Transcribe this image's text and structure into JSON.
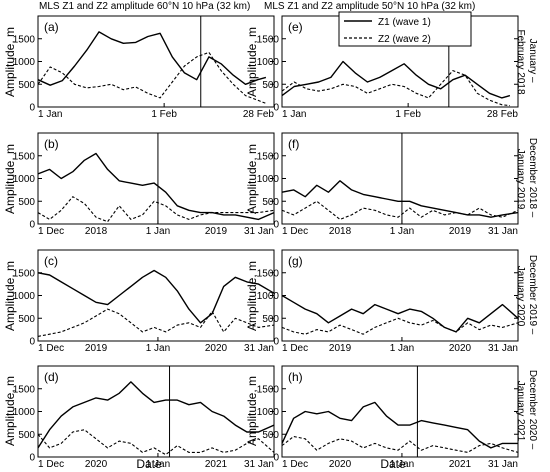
{
  "figure": {
    "left_title": "MLS  Z1 and Z2 amplitude 60°N 10 hPa (32 km)",
    "right_title": "MLS Z1 and Z2 amplitude 50°N  10 hPa (32 km)",
    "xlabel": "Date",
    "ylabel": "Amplitude, m",
    "legend": {
      "z1": "Z1 (wave 1)",
      "z2": "Z2 (wave 2)"
    }
  },
  "rows": [
    {
      "period_label": [
        "January –",
        "February 2018"
      ]
    },
    {
      "period_label": [
        "December 2018 –",
        "January 2019"
      ]
    },
    {
      "period_label": [
        "December 2019 –",
        "January 2020"
      ]
    },
    {
      "period_label": [
        "December 2020 –",
        "January 2021"
      ]
    }
  ],
  "chart_data": [
    {
      "panel": "(a)",
      "type": "line",
      "xlim": [
        0,
        58
      ],
      "ylim": [
        0,
        2000
      ],
      "yticks": [
        0,
        500,
        1000,
        1500
      ],
      "xtick_labels": [
        {
          "x": 0,
          "label": "1 Jan"
        },
        {
          "x": 31,
          "label": "1 Feb"
        },
        {
          "x": 58,
          "label": "28 Feb"
        }
      ],
      "year_labels": [],
      "vline_x": 40,
      "x": [
        0,
        3,
        6,
        9,
        12,
        15,
        18,
        21,
        24,
        27,
        30,
        33,
        36,
        39,
        42,
        45,
        48,
        51,
        54,
        56
      ],
      "series": [
        {
          "name": "Z1 (wave 1)",
          "style": "solid",
          "values": [
            600,
            480,
            580,
            900,
            1250,
            1650,
            1500,
            1400,
            1420,
            1550,
            1620,
            1100,
            750,
            600,
            1100,
            950,
            700,
            500,
            600,
            650
          ]
        },
        {
          "name": "Z2 (wave 2)",
          "style": "dashed",
          "values": [
            500,
            880,
            750,
            500,
            420,
            450,
            500,
            380,
            440,
            300,
            200,
            550,
            900,
            1100,
            1200,
            800,
            500,
            250,
            150,
            80
          ]
        }
      ]
    },
    {
      "panel": "(b)",
      "type": "line",
      "xlim": [
        0,
        61
      ],
      "ylim": [
        0,
        2000
      ],
      "yticks": [
        0,
        500,
        1000,
        1500
      ],
      "xtick_labels": [
        {
          "x": 0,
          "label": "1 Dec"
        },
        {
          "x": 31,
          "label": "1 Jan"
        },
        {
          "x": 61,
          "label": "31 Jan"
        }
      ],
      "year_labels": [
        {
          "x": 15,
          "label": "2018"
        },
        {
          "x": 46,
          "label": "2019"
        }
      ],
      "vline_x": 31,
      "x": [
        0,
        3,
        6,
        9,
        12,
        15,
        18,
        21,
        24,
        27,
        30,
        33,
        36,
        39,
        42,
        45,
        48,
        51,
        54,
        57,
        61
      ],
      "series": [
        {
          "name": "Z1 (wave 1)",
          "style": "solid",
          "values": [
            1100,
            1200,
            1000,
            1150,
            1400,
            1550,
            1200,
            950,
            900,
            850,
            900,
            700,
            400,
            300,
            250,
            250,
            200,
            200,
            150,
            100,
            250
          ]
        },
        {
          "name": "Z2 (wave 2)",
          "style": "dashed",
          "values": [
            250,
            100,
            300,
            600,
            450,
            150,
            50,
            400,
            100,
            200,
            500,
            400,
            200,
            100,
            200,
            250,
            250,
            250,
            250,
            250,
            300
          ]
        }
      ]
    },
    {
      "panel": "(c)",
      "type": "line",
      "xlim": [
        0,
        61
      ],
      "ylim": [
        0,
        2000
      ],
      "yticks": [
        0,
        500,
        1000,
        1500
      ],
      "xtick_labels": [
        {
          "x": 0,
          "label": "1 Dec"
        },
        {
          "x": 31,
          "label": "1 Jan"
        },
        {
          "x": 61,
          "label": "31 Jan"
        }
      ],
      "year_labels": [
        {
          "x": 15,
          "label": "2019"
        },
        {
          "x": 46,
          "label": "2020"
        }
      ],
      "vline_x": null,
      "x": [
        0,
        3,
        6,
        9,
        12,
        15,
        18,
        21,
        24,
        27,
        30,
        33,
        36,
        39,
        42,
        45,
        48,
        51,
        54,
        57,
        61
      ],
      "series": [
        {
          "name": "Z1 (wave 1)",
          "style": "solid",
          "values": [
            1500,
            1450,
            1300,
            1150,
            1000,
            850,
            800,
            1000,
            1200,
            1400,
            1550,
            1400,
            1100,
            700,
            400,
            600,
            1200,
            1400,
            1300,
            1250,
            1050
          ]
        },
        {
          "name": "Z2 (wave 2)",
          "style": "dashed",
          "values": [
            100,
            150,
            200,
            300,
            400,
            550,
            700,
            600,
            400,
            200,
            300,
            200,
            350,
            400,
            300,
            650,
            200,
            500,
            400,
            300,
            350
          ]
        }
      ]
    },
    {
      "panel": "(d)",
      "type": "line",
      "xlim": [
        0,
        61
      ],
      "ylim": [
        0,
        2000
      ],
      "yticks": [
        0,
        500,
        1000,
        1500
      ],
      "xtick_labels": [
        {
          "x": 0,
          "label": "1 Dec"
        },
        {
          "x": 31,
          "label": "1 Jan"
        },
        {
          "x": 61,
          "label": "31 Jan"
        }
      ],
      "year_labels": [
        {
          "x": 15,
          "label": "2020"
        },
        {
          "x": 46,
          "label": "2021"
        }
      ],
      "vline_x": 34,
      "x": [
        0,
        3,
        6,
        9,
        12,
        15,
        18,
        21,
        24,
        27,
        30,
        33,
        36,
        39,
        42,
        45,
        48,
        51,
        54,
        57,
        61
      ],
      "series": [
        {
          "name": "Z1 (wave 1)",
          "style": "solid",
          "values": [
            200,
            600,
            900,
            1100,
            1200,
            1300,
            1250,
            1400,
            1650,
            1400,
            1200,
            1250,
            1250,
            1150,
            1200,
            1000,
            900,
            700,
            550,
            550,
            700
          ]
        },
        {
          "name": "Z2 (wave 2)",
          "style": "dashed",
          "values": [
            500,
            200,
            300,
            550,
            600,
            400,
            200,
            350,
            300,
            100,
            200,
            50,
            250,
            100,
            100,
            200,
            100,
            150,
            300,
            400,
            100
          ]
        }
      ]
    },
    {
      "panel": "(e)",
      "type": "line",
      "xlim": [
        0,
        58
      ],
      "ylim": [
        0,
        2000
      ],
      "yticks": [
        0,
        500,
        1000,
        1500
      ],
      "xtick_labels": [
        {
          "x": 0,
          "label": "1 Jan"
        },
        {
          "x": 31,
          "label": "1 Feb"
        },
        {
          "x": 58,
          "label": "28 Feb"
        }
      ],
      "year_labels": [],
      "vline_x": 41,
      "x": [
        0,
        3,
        6,
        9,
        12,
        15,
        18,
        21,
        24,
        27,
        30,
        33,
        36,
        39,
        42,
        45,
        48,
        51,
        54,
        56
      ],
      "series": [
        {
          "name": "Z1 (wave 1)",
          "style": "solid",
          "values": [
            250,
            450,
            500,
            550,
            650,
            1000,
            750,
            550,
            650,
            800,
            950,
            700,
            500,
            400,
            600,
            700,
            500,
            300,
            200,
            250
          ]
        },
        {
          "name": "Z2 (wave 2)",
          "style": "dashed",
          "values": [
            350,
            550,
            400,
            350,
            400,
            500,
            450,
            300,
            400,
            500,
            450,
            300,
            200,
            500,
            800,
            700,
            300,
            150,
            50,
            30
          ]
        }
      ]
    },
    {
      "panel": "(f)",
      "type": "line",
      "xlim": [
        0,
        61
      ],
      "ylim": [
        0,
        2000
      ],
      "yticks": [
        0,
        500,
        1000,
        1500
      ],
      "xtick_labels": [
        {
          "x": 0,
          "label": "1 Dec"
        },
        {
          "x": 31,
          "label": "1 Jan"
        },
        {
          "x": 61,
          "label": "31 Jan"
        }
      ],
      "year_labels": [
        {
          "x": 15,
          "label": "2018"
        },
        {
          "x": 46,
          "label": "2019"
        }
      ],
      "vline_x": 31,
      "x": [
        0,
        3,
        6,
        9,
        12,
        15,
        18,
        21,
        24,
        27,
        30,
        33,
        36,
        39,
        42,
        45,
        48,
        51,
        54,
        57,
        61
      ],
      "series": [
        {
          "name": "Z1 (wave 1)",
          "style": "solid",
          "values": [
            700,
            750,
            600,
            850,
            700,
            950,
            750,
            650,
            600,
            550,
            500,
            500,
            400,
            350,
            300,
            250,
            200,
            200,
            150,
            200,
            250
          ]
        },
        {
          "name": "Z2 (wave 2)",
          "style": "dashed",
          "values": [
            300,
            200,
            350,
            500,
            300,
            100,
            200,
            350,
            300,
            200,
            150,
            350,
            150,
            300,
            200,
            250,
            200,
            350,
            200,
            150,
            300
          ]
        }
      ]
    },
    {
      "panel": "(g)",
      "type": "line",
      "xlim": [
        0,
        61
      ],
      "ylim": [
        0,
        2000
      ],
      "yticks": [
        0,
        500,
        1000,
        1500
      ],
      "xtick_labels": [
        {
          "x": 0,
          "label": "1 Dec"
        },
        {
          "x": 31,
          "label": "1 Jan"
        },
        {
          "x": 61,
          "label": "31 Jan"
        }
      ],
      "year_labels": [
        {
          "x": 15,
          "label": "2019"
        },
        {
          "x": 46,
          "label": "2020"
        }
      ],
      "vline_x": null,
      "x": [
        0,
        3,
        6,
        9,
        12,
        15,
        18,
        21,
        24,
        27,
        30,
        33,
        36,
        39,
        42,
        45,
        48,
        51,
        54,
        57,
        61
      ],
      "series": [
        {
          "name": "Z1 (wave 1)",
          "style": "solid",
          "values": [
            1000,
            850,
            700,
            600,
            400,
            550,
            700,
            600,
            800,
            700,
            600,
            700,
            650,
            500,
            300,
            200,
            500,
            400,
            600,
            800,
            500
          ]
        },
        {
          "name": "Z2 (wave 2)",
          "style": "dashed",
          "values": [
            300,
            200,
            150,
            250,
            200,
            350,
            250,
            150,
            300,
            400,
            500,
            400,
            350,
            450,
            300,
            200,
            400,
            250,
            350,
            300,
            400
          ]
        }
      ]
    },
    {
      "panel": "(h)",
      "type": "line",
      "xlim": [
        0,
        61
      ],
      "ylim": [
        0,
        2000
      ],
      "yticks": [
        0,
        500,
        1000,
        1500
      ],
      "xtick_labels": [
        {
          "x": 0,
          "label": "1 Dec"
        },
        {
          "x": 31,
          "label": "1 Jan"
        },
        {
          "x": 61,
          "label": "31 Jan"
        }
      ],
      "year_labels": [
        {
          "x": 15,
          "label": "2020"
        },
        {
          "x": 46,
          "label": "2021"
        }
      ],
      "vline_x": 35,
      "x": [
        0,
        3,
        6,
        9,
        12,
        15,
        18,
        21,
        24,
        27,
        30,
        33,
        36,
        39,
        42,
        45,
        48,
        51,
        54,
        57,
        61
      ],
      "series": [
        {
          "name": "Z1 (wave 1)",
          "style": "solid",
          "values": [
            300,
            850,
            1000,
            950,
            1000,
            850,
            800,
            1100,
            1200,
            900,
            700,
            700,
            800,
            750,
            700,
            650,
            600,
            350,
            200,
            300,
            300
          ]
        },
        {
          "name": "Z2 (wave 2)",
          "style": "dashed",
          "values": [
            250,
            450,
            400,
            150,
            300,
            400,
            350,
            200,
            300,
            200,
            150,
            350,
            150,
            250,
            200,
            150,
            100,
            250,
            300,
            200,
            100
          ]
        }
      ]
    }
  ]
}
